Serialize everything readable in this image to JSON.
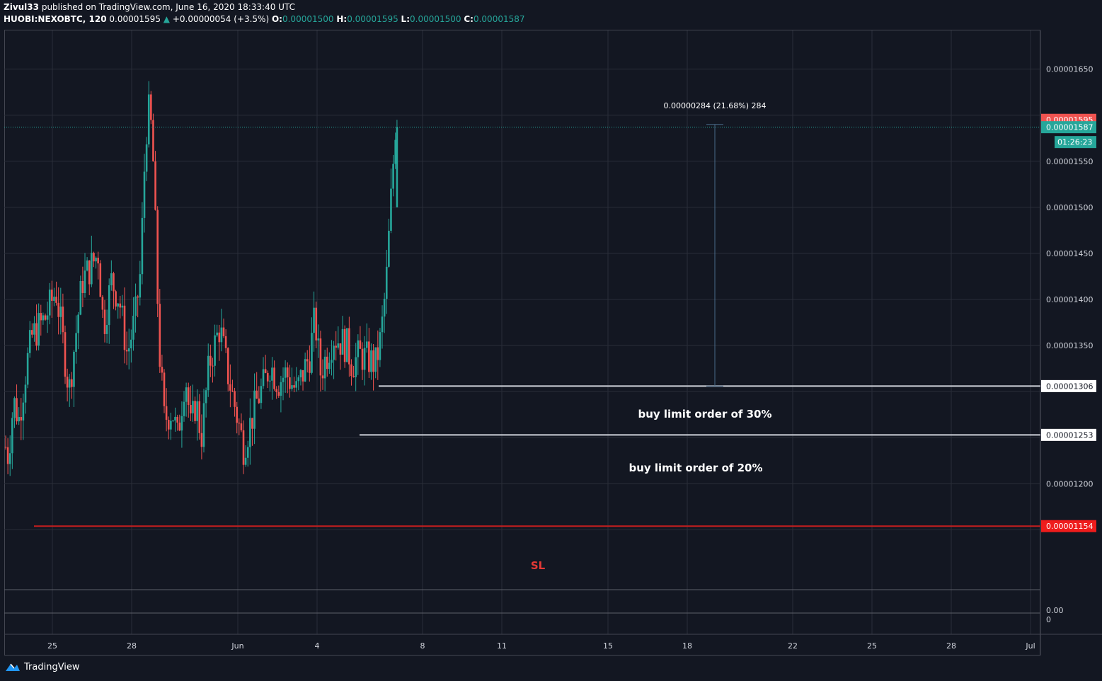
{
  "header": {
    "author": "Zivul33",
    "published_text": "published on TradingView.com, June 16, 2020 18:33:40 UTC",
    "symbol": "HUOBI:NEXOBTC, 120",
    "last_price": "0.00001595",
    "change": "+0.00000054 (+3.5%)",
    "o_label": "O:",
    "o_value": "0.00001500",
    "h_label": "H:",
    "h_value": "0.00001595",
    "l_label": "L:",
    "l_value": "0.00001500",
    "c_label": "C:",
    "c_value": "0.00001587"
  },
  "price_axis": {
    "ticks": [
      "0.00001650",
      "0.00001550",
      "0.00001500",
      "0.00001450",
      "0.00001400",
      "0.00001350",
      "0.00001200"
    ],
    "tick_values": [
      1.65e-05,
      1.55e-05,
      1.5e-05,
      1.45e-05,
      1.4e-05,
      1.35e-05,
      1.2e-05
    ],
    "badges": [
      {
        "text": "0.00001595",
        "value": 1.595e-05,
        "color": "#ef5350",
        "text_color": "#ffffff"
      },
      {
        "text": "0.00001587",
        "value": 1.587e-05,
        "color": "#26a69a",
        "text_color": "#ffffff"
      },
      {
        "text": "0.00001306",
        "value": 1.306e-05,
        "color": "#ffffff",
        "text_color": "#131722"
      },
      {
        "text": "0.00001253",
        "value": 1.253e-05,
        "color": "#ffffff",
        "text_color": "#131722"
      },
      {
        "text": "0.00001154",
        "value": 1.154e-05,
        "color": "#ef1c1c",
        "text_color": "#ffffff"
      }
    ],
    "countdown": "01:26:23"
  },
  "indicator_axis": {
    "ticks": [
      "0.00",
      "0"
    ]
  },
  "time_axis": {
    "labels": [
      "25",
      "28",
      "Jun",
      "4",
      "8",
      "11",
      "15",
      "18",
      "22",
      "25",
      "28",
      "Jul"
    ]
  },
  "annotations": {
    "measure": "0.00000284 (21.68%) 284",
    "buy30": "buy limit order of 30%",
    "buy20": "buy limit order of 20%",
    "sl": "SL"
  },
  "footer": {
    "brand": "TradingView"
  },
  "colors": {
    "up": "#26a69a",
    "down": "#ef5350",
    "background": "#131722",
    "grid": "#2a2e39",
    "sl_line": "#c41e1e"
  },
  "chart_data": {
    "type": "candlestick",
    "y_range": [
      1.085e-05,
      1.692e-05
    ],
    "price_levels": {
      "last": 1.595e-05,
      "close": 1.587e-05,
      "buy_30": 1.306e-05,
      "buy_20": 1.253e-05,
      "stop_loss": 1.154e-05
    },
    "anchors": [
      {
        "t": 0,
        "p": 1.24e-05
      },
      {
        "t": 0.1,
        "p": 1.23e-05
      },
      {
        "t": 0.3,
        "p": 1.29e-05
      },
      {
        "t": 0.5,
        "p": 1.27e-05
      },
      {
        "t": 0.8,
        "p": 1.33e-05
      },
      {
        "t": 1,
        "p": 1.36e-05
      },
      {
        "t": 1.5,
        "p": 1.38e-05
      },
      {
        "t": 1.9,
        "p": 1.41e-05
      },
      {
        "t": 2.1,
        "p": 1.37e-05
      },
      {
        "t": 2.4,
        "p": 1.3e-05
      },
      {
        "t": 2.6,
        "p": 1.35e-05
      },
      {
        "t": 2.9,
        "p": 1.42e-05
      },
      {
        "t": 3.5,
        "p": 1.45e-05
      },
      {
        "t": 3.7,
        "p": 1.37e-05
      },
      {
        "t": 4,
        "p": 1.42e-05
      },
      {
        "t": 4.3,
        "p": 1.4e-05
      },
      {
        "t": 4.6,
        "p": 1.34e-05
      },
      {
        "t": 4.9,
        "p": 1.38e-05
      },
      {
        "t": 5.1,
        "p": 1.43e-05
      },
      {
        "t": 5.3,
        "p": 1.58e-05
      },
      {
        "t": 5.45,
        "p": 1.61e-05
      },
      {
        "t": 5.6,
        "p": 1.54e-05
      },
      {
        "t": 5.8,
        "p": 1.35e-05
      },
      {
        "t": 6,
        "p": 1.27e-05
      },
      {
        "t": 6.3,
        "p": 1.28e-05
      },
      {
        "t": 6.5,
        "p": 1.25e-05
      },
      {
        "t": 6.8,
        "p": 1.32e-05
      },
      {
        "t": 7,
        "p": 1.26e-05
      },
      {
        "t": 7.2,
        "p": 1.29e-05
      },
      {
        "t": 7.4,
        "p": 1.25e-05
      },
      {
        "t": 7.7,
        "p": 1.33e-05
      },
      {
        "t": 8.1,
        "p": 1.37e-05
      },
      {
        "t": 8.4,
        "p": 1.32e-05
      },
      {
        "t": 8.7,
        "p": 1.28e-05
      },
      {
        "t": 9,
        "p": 1.24e-05
      },
      {
        "t": 9.2,
        "p": 1.26e-05
      },
      {
        "t": 9.5,
        "p": 1.29e-05
      },
      {
        "t": 9.8,
        "p": 1.31e-05
      },
      {
        "t": 10,
        "p": 1.33e-05
      },
      {
        "t": 10.3,
        "p": 1.31e-05
      },
      {
        "t": 10.6,
        "p": 1.32e-05
      },
      {
        "t": 10.8,
        "p": 1.31e-05
      },
      {
        "t": 11,
        "p": 1.3e-05
      },
      {
        "t": 11.5,
        "p": 1.34e-05
      },
      {
        "t": 11.7,
        "p": 1.38e-05
      },
      {
        "t": 11.9,
        "p": 1.32e-05
      },
      {
        "t": 12.4,
        "p": 1.36e-05
      },
      {
        "t": 12.9,
        "p": 1.35e-05
      },
      {
        "t": 13.1,
        "p": 1.33e-05
      },
      {
        "t": 13.4,
        "p": 1.34e-05
      },
      {
        "t": 14,
        "p": 1.33e-05
      },
      {
        "t": 14.2,
        "p": 1.36e-05
      },
      {
        "t": 14.4,
        "p": 1.42e-05
      },
      {
        "t": 14.6,
        "p": 1.52e-05
      },
      {
        "t": 14.75,
        "p": 1.59e-05
      }
    ]
  }
}
